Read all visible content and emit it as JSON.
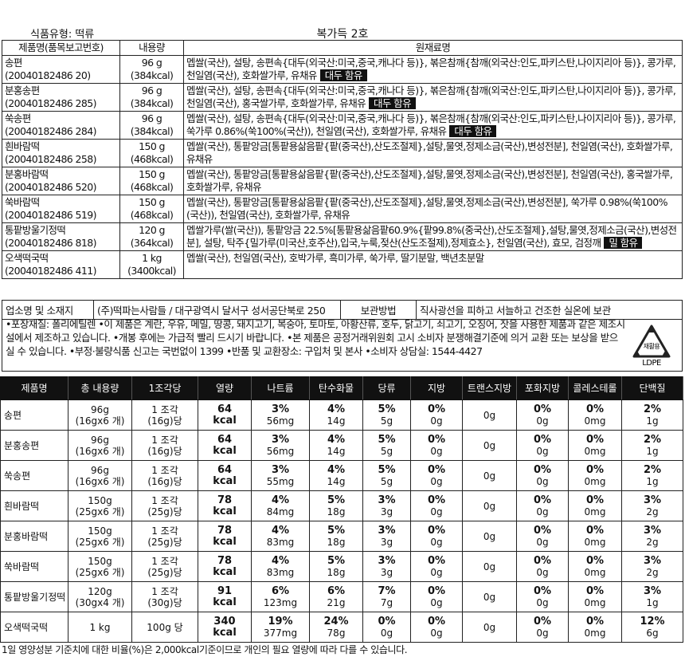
{
  "header": {
    "food_type": "식품유형: 떡류",
    "title": "복가득 2호"
  },
  "products": {
    "headers": [
      "제품명(품목보고번호)",
      "내용량",
      "원재료명"
    ],
    "rows": [
      {
        "name": "송편",
        "report_no": "(20040182486 20)",
        "amount": "96 g",
        "kcal": "(384kcal)",
        "ingredients": "멥쌀(국산), 설탕, 송편속{대두(외국산:미국,중국,캐나다 등)}, 볶은참깨{참깨(외국산:인도,파키스탄,나이지리아 등)}, 콩가루, 천일염(국산), 호화쌀가루, 유채유",
        "allergen": "대두 함유"
      },
      {
        "name": "분홍송편",
        "report_no": "(20040182486 285)",
        "amount": "96 g",
        "kcal": "(384kcal)",
        "ingredients": "멥쌀(국산), 설탕, 송편속{대두(외국산:미국,중국,캐나다 등)}, 볶은참깨{참깨(외국산:인도,파키스탄,나이지리아 등)}, 콩가루, 천일염(국산), 홍국쌀가루, 호화쌀가루, 유채유",
        "allergen": "대두 함유"
      },
      {
        "name": "쑥송편",
        "report_no": "(20040182486 284)",
        "amount": "96 g",
        "kcal": "(384kcal)",
        "ingredients": "멥쌀(국산), 설탕, 송편속{대두(외국산:미국,중국,캐나다 등)}, 볶은참깨{참깨(외국산:인도,파키스탄,나이지리아 등)}, 콩가루, 쑥가루 0.86%(쑥100%(국산)), 천일염(국산), 호화쌀가루, 유채유",
        "allergen": "대두 함유"
      },
      {
        "name": "흰바람떡",
        "report_no": "(20040182486 258)",
        "amount": "150 g",
        "kcal": "(468kcal)",
        "ingredients": "멥쌀(국산), 통팥앙금[통팥용삶음팥{팥(중국산),산도조절제},설탕,물엿,정제소금(국산),변성전분], 천일염(국산), 호화쌀가루, 유채유"
      },
      {
        "name": "분홍바람떡",
        "report_no": "(20040182486 520)",
        "amount": "150 g",
        "kcal": "(468kcal)",
        "ingredients": "멥쌀(국산), 통팥앙금[통팥용삶음팥{팥(중국산),산도조절제},설탕,물엿,정제소금(국산),변성전분], 천일염(국산), 홍국쌀가루, 호화쌀가루, 유채유"
      },
      {
        "name": "쑥바람떡",
        "report_no": "(20040182486 519)",
        "amount": "150 g",
        "kcal": "(468kcal)",
        "ingredients": "멥쌀(국산), 통팥앙금[통팥용삶음팥{팥(중국산),산도조절제},설탕,물엿,정제소금(국산),변성전분], 쑥가루 0.98%(쑥100%(국산)), 천일염(국산), 호화쌀가루, 유채유"
      },
      {
        "name": "통팥방울기정떡",
        "report_no": "(20040182486 818)",
        "amount": "120 g",
        "kcal": "(364kcal)",
        "ingredients": "멥쌀가루(쌀(국산)), 통팥앙금 22.5%[통팥용삶음팥60.9%{팥99.8%(중국산),산도조절제},설탕,물엿,정제소금(국산),변성전분], 설탕, 탁주{밀가루(미국산,호주산),입국,누룩,젖산(산도조절제),정제효소}, 천일염(국산), 효모, 검정깨",
        "allergen": "밀 함유"
      },
      {
        "name": "오색떡국떡",
        "report_no": "(20040182486 411)",
        "amount": "1 kg",
        "kcal": "(3400kcal)",
        "ingredients": "멥쌀(국산), 천일염(국산), 호박가루, 흑미가루, 쑥가루, 딸기분말, 백년초분말"
      }
    ]
  },
  "business": {
    "label": "업소명 및 소재지",
    "value": "(주)떡파는사람들 / 대구광역시 달서구 성서공단북로 250",
    "storage_label": "보관방법",
    "storage": "직사광선을 피하고 서늘하고 건조한 실온에 보관"
  },
  "notes": "•포장재질: 폴리에틸렌 •이 제품은 계란, 우유, 메밀, 땅콩, 돼지고기, 복숭아, 토마토, 아황산류, 호두, 닭고기, 쇠고기, 오징어, 잣을 사용한 제품과 같은 제조시설에서 제조하고 있습니다. •개봉 후에는 가급적 빨리 드시기 바랍니다. •본 제품은 공정거래위원회 고시 소비자 분쟁해결기준에 의거 교환 또는 보상을 받으실 수 있습니다. •부정·불량식품 신고는 국번없이 1399 •반품 및 교환장소: 구입처 및 본사 •소비자 상담실: 1544-4427",
  "recycle": {
    "mark": "재활용",
    "material": "LDPE"
  },
  "nutrition": {
    "headers": [
      "제품명",
      "총 내용량",
      "1조각당",
      "열량",
      "나트륨",
      "탄수화물",
      "당류",
      "지방",
      "트랜스지방",
      "포화지방",
      "콜레스테롤",
      "단백질"
    ],
    "rows": [
      {
        "name": "송편",
        "cells": [
          [
            "96g",
            "(16gx6 개)"
          ],
          [
            "1 조각",
            "(16g)당"
          ],
          [
            "64",
            "kcal"
          ],
          [
            "3%",
            "56mg"
          ],
          [
            "4%",
            "14g"
          ],
          [
            "5%",
            "5g"
          ],
          [
            "0%",
            "0g"
          ],
          [
            "0g"
          ],
          [
            "0%",
            "0g"
          ],
          [
            "0%",
            "0mg"
          ],
          [
            "2%",
            "1g"
          ]
        ]
      },
      {
        "name": "분홍송편",
        "cells": [
          [
            "96g",
            "(16gx6 개)"
          ],
          [
            "1 조각",
            "(16g)당"
          ],
          [
            "64",
            "kcal"
          ],
          [
            "3%",
            "56mg"
          ],
          [
            "4%",
            "14g"
          ],
          [
            "5%",
            "5g"
          ],
          [
            "0%",
            "0g"
          ],
          [
            "0g"
          ],
          [
            "0%",
            "0g"
          ],
          [
            "0%",
            "0mg"
          ],
          [
            "2%",
            "1g"
          ]
        ]
      },
      {
        "name": "쑥송편",
        "cells": [
          [
            "96g",
            "(16gx6 개)"
          ],
          [
            "1 조각",
            "(16g)당"
          ],
          [
            "64",
            "kcal"
          ],
          [
            "3%",
            "55mg"
          ],
          [
            "4%",
            "14g"
          ],
          [
            "5%",
            "5g"
          ],
          [
            "0%",
            "0g"
          ],
          [
            "0g"
          ],
          [
            "0%",
            "0g"
          ],
          [
            "0%",
            "0mg"
          ],
          [
            "2%",
            "1g"
          ]
        ]
      },
      {
        "name": "흰바람떡",
        "cells": [
          [
            "150g",
            "(25gx6 개)"
          ],
          [
            "1 조각",
            "(25g)당"
          ],
          [
            "78",
            "kcal"
          ],
          [
            "4%",
            "84mg"
          ],
          [
            "5%",
            "18g"
          ],
          [
            "3%",
            "3g"
          ],
          [
            "0%",
            "0g"
          ],
          [
            "0g"
          ],
          [
            "0%",
            "0g"
          ],
          [
            "0%",
            "0mg"
          ],
          [
            "3%",
            "2g"
          ]
        ]
      },
      {
        "name": "분홍바람떡",
        "cells": [
          [
            "150g",
            "(25gx6 개)"
          ],
          [
            "1 조각",
            "(25g)당"
          ],
          [
            "78",
            "kcal"
          ],
          [
            "4%",
            "83mg"
          ],
          [
            "5%",
            "18g"
          ],
          [
            "3%",
            "3g"
          ],
          [
            "0%",
            "0g"
          ],
          [
            "0g"
          ],
          [
            "0%",
            "0g"
          ],
          [
            "0%",
            "0mg"
          ],
          [
            "3%",
            "2g"
          ]
        ]
      },
      {
        "name": "쑥바람떡",
        "cells": [
          [
            "150g",
            "(25gx6 개)"
          ],
          [
            "1 조각",
            "(25g)당"
          ],
          [
            "78",
            "kcal"
          ],
          [
            "4%",
            "83mg"
          ],
          [
            "5%",
            "18g"
          ],
          [
            "3%",
            "3g"
          ],
          [
            "0%",
            "0g"
          ],
          [
            "0g"
          ],
          [
            "0%",
            "0g"
          ],
          [
            "0%",
            "0mg"
          ],
          [
            "3%",
            "2g"
          ]
        ]
      },
      {
        "name": "통팥방울기정떡",
        "cells": [
          [
            "120g",
            "(30gx4 개)"
          ],
          [
            "1 조각",
            "(30g)당"
          ],
          [
            "91",
            "kcal"
          ],
          [
            "6%",
            "123mg"
          ],
          [
            "6%",
            "21g"
          ],
          [
            "7%",
            "7g"
          ],
          [
            "0%",
            "0g"
          ],
          [
            "0g"
          ],
          [
            "0%",
            "0g"
          ],
          [
            "0%",
            "0mg"
          ],
          [
            "3%",
            "1g"
          ]
        ]
      },
      {
        "name": "오색떡국떡",
        "cells": [
          [
            "1 kg"
          ],
          [
            "100g 당"
          ],
          [
            "340",
            "kcal"
          ],
          [
            "19%",
            "377mg"
          ],
          [
            "24%",
            "78g"
          ],
          [
            "0%",
            "0g"
          ],
          [
            "0%",
            "0g"
          ],
          [
            "0g"
          ],
          [
            "0%",
            "0g"
          ],
          [
            "0%",
            "0mg"
          ],
          [
            "12%",
            "6g"
          ]
        ]
      }
    ]
  },
  "footnote": "1일 영양성분 기준치에 대한 비율(%)은 2,000kcal기준이므로 개인의 필요 열량에 따라 다를 수 있습니다."
}
